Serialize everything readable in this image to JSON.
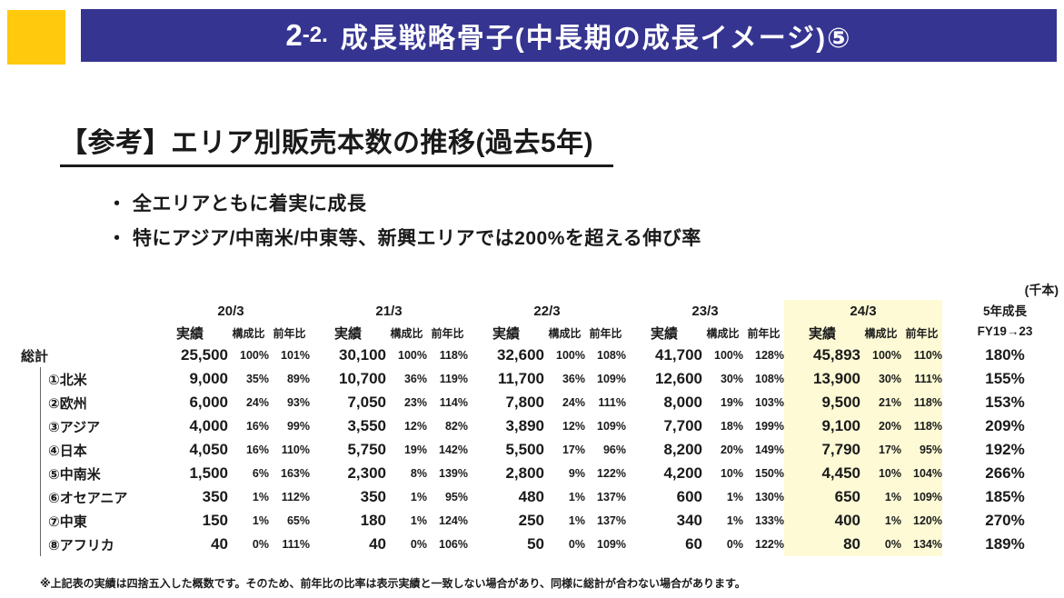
{
  "banner": {
    "prefix_main": "2",
    "prefix_sub": "-2.",
    "title": "成長戦略骨子(中長期の成長イメージ)⑤"
  },
  "heading": {
    "title": "【参考】エリア別販売本数の推移(過去5年)"
  },
  "bullets": [
    "・ 全エリアともに着実に成長",
    "・ 特にアジア/中南米/中東等、新興エリアでは200%を超える伸び率"
  ],
  "colors": {
    "banner_blue": "#353491",
    "accent_yellow": "#FFC90E",
    "highlight_yellow": "#FDFAD5"
  },
  "table": {
    "unit_label": "(千本)",
    "year_groups": [
      {
        "label": "20/3",
        "highlight": false
      },
      {
        "label": "21/3",
        "highlight": false
      },
      {
        "label": "22/3",
        "highlight": false
      },
      {
        "label": "23/3",
        "highlight": false
      },
      {
        "label": "24/3",
        "highlight": true
      }
    ],
    "subheaders": [
      "実績",
      "構成比",
      "前年比"
    ],
    "growth_header": [
      "5年成長",
      "FY19→23"
    ],
    "rows": [
      {
        "label": "総計",
        "indent": false,
        "separator": "solid",
        "cells": [
          [
            "25,500",
            "100%",
            "101%"
          ],
          [
            "30,100",
            "100%",
            "118%"
          ],
          [
            "32,600",
            "100%",
            "108%"
          ],
          [
            "41,700",
            "100%",
            "128%"
          ],
          [
            "45,893",
            "100%",
            "110%"
          ]
        ],
        "growth": "180%"
      },
      {
        "label": "①北米",
        "indent": true,
        "separator": "thick",
        "cells": [
          [
            "9,000",
            "35%",
            "89%"
          ],
          [
            "10,700",
            "36%",
            "119%"
          ],
          [
            "11,700",
            "36%",
            "109%"
          ],
          [
            "12,600",
            "30%",
            "108%"
          ],
          [
            "13,900",
            "30%",
            "111%"
          ]
        ],
        "growth": "155%"
      },
      {
        "label": "②欧州",
        "indent": true,
        "separator": "dotted",
        "cells": [
          [
            "6,000",
            "24%",
            "93%"
          ],
          [
            "7,050",
            "23%",
            "114%"
          ],
          [
            "7,800",
            "24%",
            "111%"
          ],
          [
            "8,000",
            "19%",
            "103%"
          ],
          [
            "9,500",
            "21%",
            "118%"
          ]
        ],
        "growth": "153%"
      },
      {
        "label": "③アジア",
        "indent": true,
        "separator": "dotted",
        "cells": [
          [
            "4,000",
            "16%",
            "99%"
          ],
          [
            "3,550",
            "12%",
            "82%"
          ],
          [
            "3,890",
            "12%",
            "109%"
          ],
          [
            "7,700",
            "18%",
            "199%"
          ],
          [
            "9,100",
            "20%",
            "118%"
          ]
        ],
        "growth": "209%"
      },
      {
        "label": "④日本",
        "indent": true,
        "separator": "dotted",
        "cells": [
          [
            "4,050",
            "16%",
            "110%"
          ],
          [
            "5,750",
            "19%",
            "142%"
          ],
          [
            "5,500",
            "17%",
            "96%"
          ],
          [
            "8,200",
            "20%",
            "149%"
          ],
          [
            "7,790",
            "17%",
            "95%"
          ]
        ],
        "growth": "192%"
      },
      {
        "label": "⑤中南米",
        "indent": true,
        "separator": "thick",
        "cells": [
          [
            "1,500",
            "6%",
            "163%"
          ],
          [
            "2,300",
            "8%",
            "139%"
          ],
          [
            "2,800",
            "9%",
            "122%"
          ],
          [
            "4,200",
            "10%",
            "150%"
          ],
          [
            "4,450",
            "10%",
            "104%"
          ]
        ],
        "growth": "266%"
      },
      {
        "label": "⑥オセアニア",
        "indent": true,
        "separator": "line",
        "cells": [
          [
            "350",
            "1%",
            "112%"
          ],
          [
            "350",
            "1%",
            "95%"
          ],
          [
            "480",
            "1%",
            "137%"
          ],
          [
            "600",
            "1%",
            "130%"
          ],
          [
            "650",
            "1%",
            "109%"
          ]
        ],
        "growth": "185%"
      },
      {
        "label": "⑦中東",
        "indent": true,
        "separator": "dotted",
        "cells": [
          [
            "150",
            "1%",
            "65%"
          ],
          [
            "180",
            "1%",
            "124%"
          ],
          [
            "250",
            "1%",
            "137%"
          ],
          [
            "340",
            "1%",
            "133%"
          ],
          [
            "400",
            "1%",
            "120%"
          ]
        ],
        "growth": "270%"
      },
      {
        "label": "⑧アフリカ",
        "indent": true,
        "separator": "dotted",
        "cells": [
          [
            "40",
            "0%",
            "111%"
          ],
          [
            "40",
            "0%",
            "106%"
          ],
          [
            "50",
            "0%",
            "109%"
          ],
          [
            "60",
            "0%",
            "122%"
          ],
          [
            "80",
            "0%",
            "134%"
          ]
        ],
        "growth": "189%"
      }
    ]
  },
  "footnote": "※上記表の実績は四捨五入した概数です。そのため、前年比の比率は表示実績と一致しない場合があり、同様に総計が合わない場合があります。"
}
